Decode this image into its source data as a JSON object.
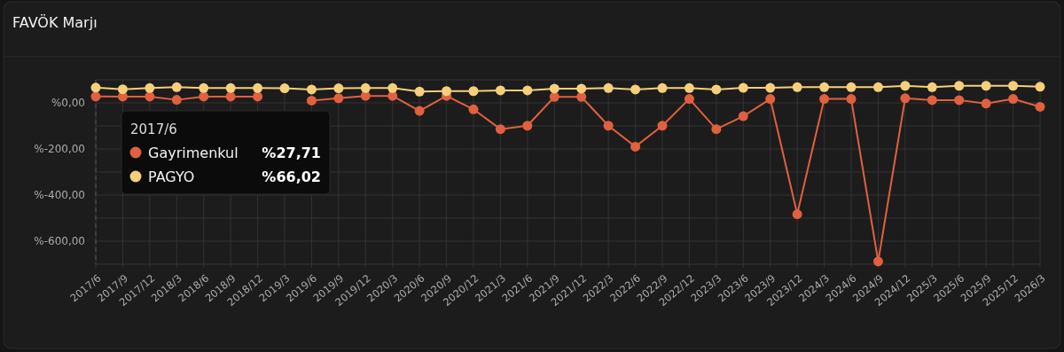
{
  "chart_data": {
    "type": "line",
    "title": "FAVÖK Marjı",
    "categories": [
      "2017/6",
      "2017/9",
      "2017/12",
      "2018/3",
      "2018/6",
      "2018/9",
      "2018/12",
      "2019/3",
      "2019/6",
      "2019/9",
      "2019/12",
      "2020/3",
      "2020/6",
      "2020/9",
      "2020/12",
      "2021/3",
      "2021/6",
      "2021/9",
      "2021/12",
      "2022/3",
      "2022/6",
      "2022/9",
      "2022/12",
      "2023/3",
      "2023/6",
      "2023/9",
      "2023/12",
      "2024/3",
      "2024/6",
      "2024/9",
      "2024/12",
      "2025/3",
      "2025/6",
      "2025/9",
      "2025/12",
      "2026/3"
    ],
    "series": [
      {
        "name": "Gayrimenkul",
        "color": "#e0603f",
        "values": [
          27.71,
          27,
          27,
          13,
          27,
          27,
          27,
          null,
          10,
          20,
          30,
          30,
          -35,
          30,
          -28,
          -114,
          -99,
          26,
          26,
          -99,
          -190,
          -99,
          17,
          -114,
          -58,
          17,
          -483,
          17,
          17,
          -688,
          20,
          12,
          12,
          -3,
          17,
          -17
        ]
      },
      {
        "name": "PAGYO",
        "color": "#f5cf7a",
        "values": [
          66.02,
          59,
          64,
          68,
          64,
          64,
          64,
          63,
          58,
          63,
          64,
          64,
          49,
          51,
          51,
          54,
          54,
          62,
          62,
          64,
          58,
          64,
          64,
          58,
          65,
          65,
          68,
          68,
          68,
          68,
          74,
          68,
          74,
          74,
          74,
          70
        ]
      }
    ],
    "ylim": [
      -700,
      100
    ],
    "yticks": [
      {
        "value": 100,
        "label": null
      },
      {
        "value": 0,
        "label": "%0,00"
      },
      {
        "value": -100,
        "label": null
      },
      {
        "value": -200,
        "label": "%-200,00"
      },
      {
        "value": -300,
        "label": null
      },
      {
        "value": -400,
        "label": "%-400,00"
      },
      {
        "value": -500,
        "label": null
      },
      {
        "value": -600,
        "label": "%-600,00"
      },
      {
        "value": -700,
        "label": null
      }
    ],
    "grid": true,
    "legend": "top left",
    "marker": "circle",
    "line_style": "solid",
    "annotations": [
      "2017/6",
      "%27,71",
      "%66,02"
    ]
  }
}
